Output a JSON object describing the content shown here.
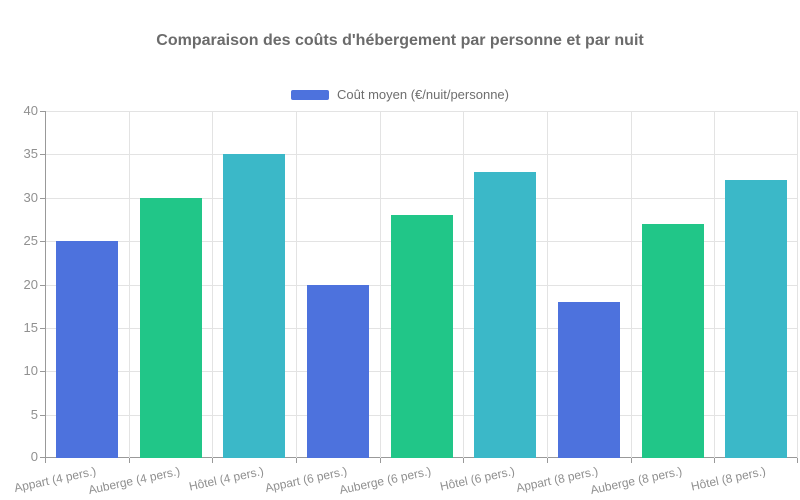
{
  "chart_data": {
    "type": "bar",
    "title": "Comparaison des coûts d'hébergement par personne et par nuit",
    "legend": "Coût moyen (€/nuit/personne)",
    "categories": [
      "Appart (4 pers.)",
      "Auberge (4 pers.)",
      "Hôtel (4 pers.)",
      "Appart (6 pers.)",
      "Auberge (6 pers.)",
      "Hôtel (6 pers.)",
      "Appart (8 pers.)",
      "Auberge (8 pers.)",
      "Hôtel (8 pers.)"
    ],
    "values": [
      25,
      30,
      35,
      20,
      28,
      33,
      18,
      27,
      32
    ],
    "bar_colors": [
      "#4d72dd",
      "#21c688",
      "#3bb8c8",
      "#4d72dd",
      "#21c688",
      "#3bb8c8",
      "#4d72dd",
      "#21c688",
      "#3bb8c8"
    ],
    "xlabel": "",
    "ylabel": "",
    "ylim": [
      0,
      40
    ],
    "yticks": [
      0,
      5,
      10,
      15,
      20,
      25,
      30,
      35,
      40
    ],
    "grid": true,
    "legend_position": "top",
    "colors": {
      "appart": "#4d72dd",
      "auberge": "#21c688",
      "hotel": "#3bb8c8",
      "legend_swatch": "#4d72dd",
      "axis_line": "#999999",
      "grid_line": "#e3e3e3",
      "title_text": "#6b6b6b",
      "axis_text": "#909090",
      "legend_text": "#6e6e6e",
      "background": "#ffffff"
    }
  }
}
